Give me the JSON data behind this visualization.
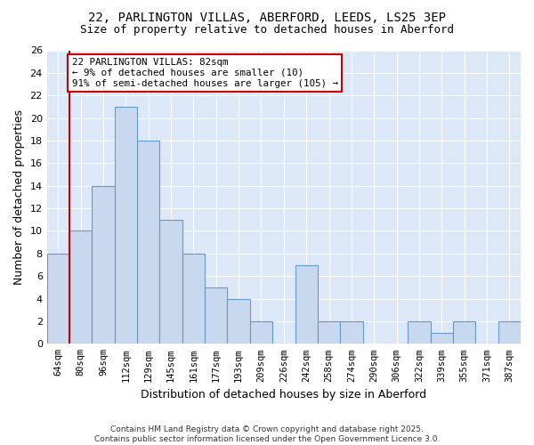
{
  "title1": "22, PARLINGTON VILLAS, ABERFORD, LEEDS, LS25 3EP",
  "title2": "Size of property relative to detached houses in Aberford",
  "xlabel": "Distribution of detached houses by size in Aberford",
  "ylabel": "Number of detached properties",
  "categories": [
    "64sqm",
    "80sqm",
    "96sqm",
    "112sqm",
    "129sqm",
    "145sqm",
    "161sqm",
    "177sqm",
    "193sqm",
    "209sqm",
    "226sqm",
    "242sqm",
    "258sqm",
    "274sqm",
    "290sqm",
    "306sqm",
    "322sqm",
    "339sqm",
    "355sqm",
    "371sqm",
    "387sqm"
  ],
  "values": [
    8,
    10,
    14,
    21,
    18,
    11,
    8,
    5,
    4,
    2,
    0,
    7,
    2,
    2,
    0,
    0,
    2,
    1,
    2,
    0,
    2
  ],
  "bar_color": "#c8d8ee",
  "bar_edge_color": "#6699cc",
  "annotation_line1": "22 PARLINGTON VILLAS: 82sqm",
  "annotation_line2": "← 9% of detached houses are smaller (10)",
  "annotation_line3": "91% of semi-detached houses are larger (105) →",
  "annotation_box_facecolor": "#ffffff",
  "annotation_box_edgecolor": "#cc0000",
  "vline_color": "#cc0000",
  "vline_xidx": 1,
  "ylim": [
    0,
    26
  ],
  "yticks": [
    0,
    2,
    4,
    6,
    8,
    10,
    12,
    14,
    16,
    18,
    20,
    22,
    24,
    26
  ],
  "fig_bg_color": "#ffffff",
  "plot_bg_color": "#dce8f8",
  "grid_color": "#ffffff",
  "footer_line1": "Contains HM Land Registry data © Crown copyright and database right 2025.",
  "footer_line2": "Contains public sector information licensed under the Open Government Licence 3.0."
}
